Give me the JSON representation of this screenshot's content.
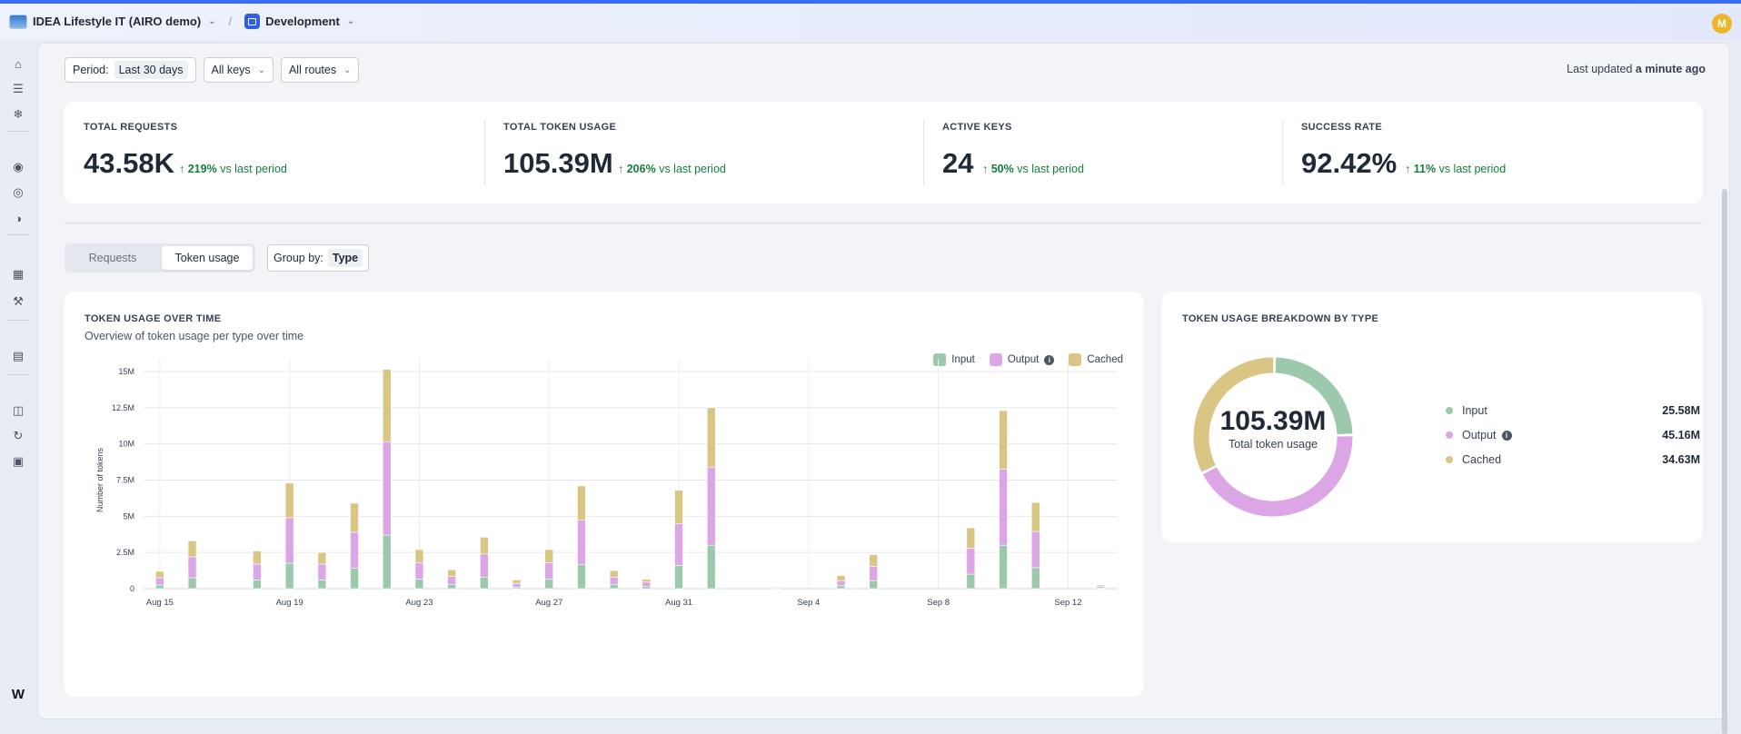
{
  "topbar": {
    "org_name": "IDEA Lifestyle IT (AIRO demo)",
    "project_name": "Development",
    "avatar_initial": "M"
  },
  "filters": {
    "period_label": "Period:",
    "period_value": "Last 30 days",
    "keys": "All keys",
    "routes": "All routes",
    "updated_prefix": "Last updated",
    "updated_value": "a minute ago"
  },
  "stats": [
    {
      "label": "TOTAL REQUESTS",
      "value": "43.58K",
      "delta": "219%",
      "delta_suffix": "vs last period"
    },
    {
      "label": "TOTAL TOKEN USAGE",
      "value": "105.39M",
      "delta": "206%",
      "delta_suffix": "vs last period"
    },
    {
      "label": "ACTIVE KEYS",
      "value": "24",
      "delta": "50%",
      "delta_suffix": "vs last period"
    },
    {
      "label": "SUCCESS RATE",
      "value": "92.42%",
      "delta": "11%",
      "delta_suffix": "vs last period"
    }
  ],
  "tabs": {
    "requests": "Requests",
    "token_usage": "Token usage",
    "active": "token_usage"
  },
  "group_by": {
    "label": "Group by:",
    "value": "Type"
  },
  "usage_card": {
    "title": "TOKEN USAGE OVER TIME",
    "subtitle": "Overview of token usage per type over time"
  },
  "breakdown_card": {
    "title": "TOKEN USAGE BREAKDOWN BY TYPE",
    "center_value": "105.39M",
    "center_label": "Total token usage",
    "items": [
      {
        "name": "Input",
        "value": "25.58M",
        "color": "#9cc9ac"
      },
      {
        "name": "Output",
        "value": "45.16M",
        "color": "#dca6e6"
      },
      {
        "name": "Cached",
        "value": "34.63M",
        "color": "#d9c584"
      }
    ]
  },
  "chart_data": {
    "type": "bar",
    "stacked": true,
    "ylabel": "Number of tokens",
    "xlabel": "",
    "ylim": [
      0,
      15000000
    ],
    "y_ticks": [
      {
        "value": 0,
        "label": "0"
      },
      {
        "value": 2500000,
        "label": "2.5M"
      },
      {
        "value": 5000000,
        "label": "5M"
      },
      {
        "value": 7500000,
        "label": "7.5M"
      },
      {
        "value": 10000000,
        "label": "10M"
      },
      {
        "value": 12500000,
        "label": "12.5M"
      },
      {
        "value": 15000000,
        "label": "15M"
      }
    ],
    "categories": [
      "Aug 15",
      "Aug 16",
      "Aug 17",
      "Aug 18",
      "Aug 19",
      "Aug 20",
      "Aug 21",
      "Aug 22",
      "Aug 23",
      "Aug 24",
      "Aug 25",
      "Aug 26",
      "Aug 27",
      "Aug 28",
      "Aug 29",
      "Aug 30",
      "Aug 31",
      "Sep 1",
      "Sep 2",
      "Sep 3",
      "Sep 4",
      "Sep 5",
      "Sep 6",
      "Sep 7",
      "Sep 8",
      "Sep 9",
      "Sep 10",
      "Sep 11",
      "Sep 12",
      "Sep 13"
    ],
    "x_tick_labels": [
      "Aug 15",
      "Aug 19",
      "Aug 23",
      "Aug 27",
      "Aug 31",
      "Sep 4",
      "Sep 8",
      "Sep 12"
    ],
    "series": [
      {
        "name": "Input",
        "color": "#9cc9ac",
        "values": [
          0.25,
          0.75,
          0,
          0.6,
          1.75,
          0.6,
          1.4,
          3.7,
          0.65,
          0.3,
          0.8,
          0.1,
          0.65,
          1.65,
          0.3,
          0.15,
          1.6,
          3.0,
          0,
          0.05,
          0,
          0.2,
          0.55,
          0,
          0,
          1.0,
          3.0,
          1.45,
          0,
          0.05
        ]
      },
      {
        "name": "Output",
        "color": "#dca6e6",
        "values": [
          0.5,
          1.45,
          0,
          1.1,
          3.15,
          1.1,
          2.5,
          6.45,
          1.15,
          0.55,
          1.6,
          0.25,
          1.15,
          3.1,
          0.5,
          0.3,
          2.9,
          5.4,
          0,
          0.05,
          0,
          0.35,
          1.0,
          0,
          0,
          1.8,
          5.25,
          2.5,
          0,
          0.1
        ]
      },
      {
        "name": "Cached",
        "color": "#d9c584",
        "values": [
          0.45,
          1.1,
          0,
          0.9,
          2.4,
          0.8,
          2.0,
          5.0,
          0.9,
          0.45,
          1.15,
          0.25,
          0.9,
          2.35,
          0.45,
          0.2,
          2.3,
          4.1,
          0,
          0.05,
          0,
          0.35,
          0.8,
          0,
          0,
          1.4,
          4.05,
          2.0,
          0,
          0.1
        ]
      }
    ],
    "value_unit": "M",
    "legend": "top-right",
    "grid": true
  }
}
